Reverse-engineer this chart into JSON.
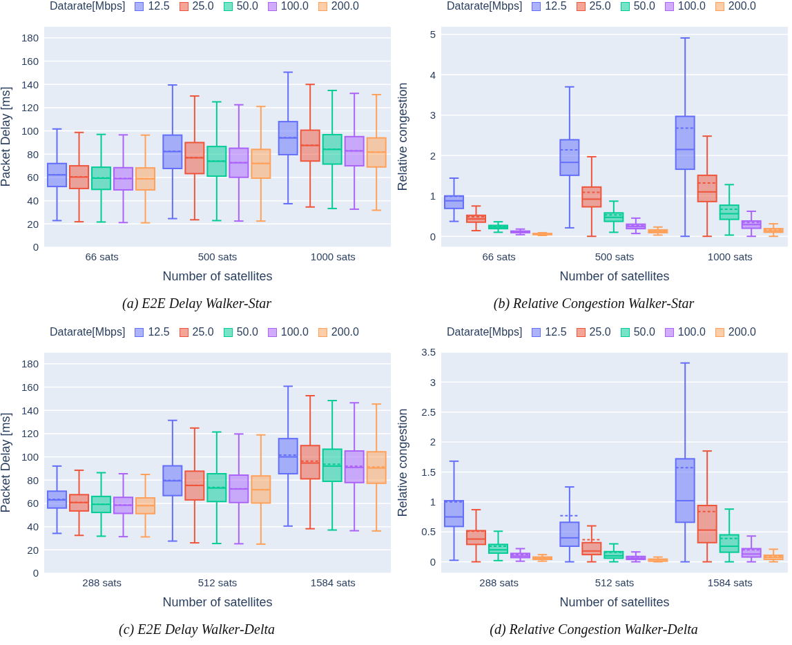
{
  "chart_data": [
    {
      "type": "box",
      "title": "(a) E2E Delay Walker-Star",
      "xlabel": "Number of satellites",
      "ylabel": "Packet Delay [ms]",
      "legend_title": "Datarate[Mbps]",
      "legend": "top",
      "grid": "y",
      "categories": [
        "66 sats",
        "500 sats",
        "1000 sats"
      ],
      "ylim": [
        0,
        190
      ],
      "yticks": [
        0,
        20,
        40,
        60,
        80,
        100,
        120,
        140,
        160,
        180
      ],
      "series": [
        {
          "name": "12.5",
          "color": "#636efa",
          "boxes": [
            {
              "low": 22.9,
              "q1": 52.2,
              "median": 62.2,
              "q3": 72,
              "high": 101.7,
              "mean": 62.4
            },
            {
              "low": 24.6,
              "q1": 67.7,
              "median": 82.2,
              "q3": 96.4,
              "high": 139.5,
              "mean": 82.5
            },
            {
              "low": 37.4,
              "q1": 79.6,
              "median": 94,
              "q3": 108,
              "high": 150.5,
              "mean": 94.3
            }
          ]
        },
        {
          "name": "25.0",
          "color": "#ef553b",
          "boxes": [
            {
              "low": 21.9,
              "q1": 50.5,
              "median": 60.3,
              "q3": 70,
              "high": 98.7,
              "mean": 60.5
            },
            {
              "low": 23.6,
              "q1": 63.3,
              "median": 76.9,
              "q3": 90,
              "high": 130,
              "mean": 77.1
            },
            {
              "low": 34.6,
              "q1": 74.1,
              "median": 87.5,
              "q3": 100.6,
              "high": 140,
              "mean": 87.7
            }
          ]
        },
        {
          "name": "50.0",
          "color": "#00cc96",
          "boxes": [
            {
              "low": 21.7,
              "q1": 49.7,
              "median": 59.4,
              "q3": 68.8,
              "high": 97,
              "mean": 59.6
            },
            {
              "low": 22.9,
              "q1": 61.1,
              "median": 73.9,
              "q3": 86.6,
              "high": 125,
              "mean": 74.1
            },
            {
              "low": 33.3,
              "q1": 71.5,
              "median": 84.1,
              "q3": 96.8,
              "high": 134.8,
              "mean": 84.3
            }
          ]
        },
        {
          "name": "100.0",
          "color": "#ab63fa",
          "boxes": [
            {
              "low": 21.2,
              "q1": 49.3,
              "median": 59,
              "q3": 68.4,
              "high": 96.6,
              "mean": 59.2
            },
            {
              "low": 22.5,
              "q1": 60.1,
              "median": 72.6,
              "q3": 85.1,
              "high": 122.5,
              "mean": 72.8
            },
            {
              "low": 32.7,
              "q1": 70,
              "median": 82.8,
              "q3": 95.1,
              "high": 132.3,
              "mean": 83
            }
          ]
        },
        {
          "name": "200.0",
          "color": "#ffa15a",
          "boxes": [
            {
              "low": 21,
              "q1": 49.3,
              "median": 58.8,
              "q3": 68.2,
              "high": 96.4,
              "mean": 59
            },
            {
              "low": 22.5,
              "q1": 59.4,
              "median": 72,
              "q3": 84.1,
              "high": 121,
              "mean": 72.2
            },
            {
              "low": 31.8,
              "q1": 69,
              "median": 81.7,
              "q3": 94,
              "high": 131.2,
              "mean": 81.9
            }
          ]
        }
      ]
    },
    {
      "type": "box",
      "title": "(b) Relative Congestion Walker-Star",
      "xlabel": "Number of satellites",
      "ylabel": "Relative congestion",
      "legend_title": "Datarate[Mbps]",
      "legend": "top",
      "grid": "y",
      "categories": [
        "66 sats",
        "500 sats",
        "1000 sats"
      ],
      "ylim": [
        -0.27,
        5.2
      ],
      "yticks": [
        0,
        1,
        2,
        3,
        4,
        5
      ],
      "series": [
        {
          "name": "12.5",
          "color": "#636efa",
          "boxes": [
            {
              "low": 0.37,
              "q1": 0.69,
              "median": 0.88,
              "q3": 1.0,
              "high": 1.44,
              "mean": 0.99
            },
            {
              "low": 0.21,
              "q1": 1.51,
              "median": 1.83,
              "q3": 2.39,
              "high": 3.7,
              "mean": 2.14
            },
            {
              "low": 0,
              "q1": 1.66,
              "median": 2.15,
              "q3": 2.97,
              "high": 4.91,
              "mean": 2.68
            }
          ]
        },
        {
          "name": "25.0",
          "color": "#ef553b",
          "boxes": [
            {
              "low": 0.14,
              "q1": 0.35,
              "median": 0.43,
              "q3": 0.52,
              "high": 0.75,
              "mean": 0.48
            },
            {
              "low": 0,
              "q1": 0.73,
              "median": 0.92,
              "q3": 1.22,
              "high": 1.97,
              "mean": 1.09
            },
            {
              "low": 0,
              "q1": 0.86,
              "median": 1.1,
              "q3": 1.51,
              "high": 2.48,
              "mean": 1.32
            }
          ]
        },
        {
          "name": "50.0",
          "color": "#00cc96",
          "boxes": [
            {
              "low": 0.1,
              "q1": 0.19,
              "median": 0.23,
              "q3": 0.27,
              "high": 0.36,
              "mean": 0.24
            },
            {
              "low": 0.1,
              "q1": 0.37,
              "median": 0.47,
              "q3": 0.58,
              "high": 0.87,
              "mean": 0.53
            },
            {
              "low": 0.03,
              "q1": 0.42,
              "median": 0.56,
              "q3": 0.77,
              "high": 1.28,
              "mean": 0.67
            }
          ]
        },
        {
          "name": "100.0",
          "color": "#ab63fa",
          "boxes": [
            {
              "low": 0.04,
              "q1": 0.09,
              "median": 0.11,
              "q3": 0.13,
              "high": 0.18,
              "mean": 0.12
            },
            {
              "low": 0.07,
              "q1": 0.19,
              "median": 0.24,
              "q3": 0.3,
              "high": 0.45,
              "mean": 0.27
            },
            {
              "low": 0,
              "q1": 0.2,
              "median": 0.29,
              "q3": 0.38,
              "high": 0.62,
              "mean": 0.34
            }
          ]
        },
        {
          "name": "200.0",
          "color": "#ffa15a",
          "boxes": [
            {
              "low": 0.02,
              "q1": 0.04,
              "median": 0.055,
              "q3": 0.07,
              "high": 0.09,
              "mean": 0.065
            },
            {
              "low": 0.03,
              "q1": 0.09,
              "median": 0.12,
              "q3": 0.16,
              "high": 0.23,
              "mean": 0.14
            },
            {
              "low": 0,
              "q1": 0.1,
              "median": 0.13,
              "q3": 0.19,
              "high": 0.31,
              "mean": 0.16
            }
          ]
        }
      ]
    },
    {
      "type": "box",
      "title": "(c) E2E Delay Walker-Delta",
      "xlabel": "Number of satellites",
      "ylabel": "Packet Delay [ms]",
      "legend_title": "Datarate[Mbps]",
      "legend": "top",
      "grid": "y",
      "categories": [
        "288 sats",
        "512 sats",
        "1584 sats"
      ],
      "ylim": [
        0,
        190
      ],
      "yticks": [
        0,
        20,
        40,
        60,
        80,
        100,
        120,
        140,
        160,
        180
      ],
      "series": [
        {
          "name": "12.5",
          "color": "#636efa",
          "boxes": [
            {
              "low": 34.2,
              "q1": 56,
              "median": 63,
              "q3": 70.5,
              "high": 92.1,
              "mean": 63.5
            },
            {
              "low": 27.6,
              "q1": 66.7,
              "median": 79.4,
              "q3": 92.3,
              "high": 131.4,
              "mean": 79.8
            },
            {
              "low": 40.5,
              "q1": 85.5,
              "median": 100,
              "q3": 115.7,
              "high": 160.7,
              "mean": 101.5
            }
          ]
        },
        {
          "name": "25.0",
          "color": "#ef553b",
          "boxes": [
            {
              "low": 32.5,
              "q1": 53.5,
              "median": 60.7,
              "q3": 67.5,
              "high": 88.5,
              "mean": 60.9
            },
            {
              "low": 26.1,
              "q1": 63,
              "median": 75.4,
              "q3": 87.7,
              "high": 124.8,
              "mean": 75.6
            },
            {
              "low": 38.2,
              "q1": 81.1,
              "median": 94.7,
              "q3": 109.7,
              "high": 152.6,
              "mean": 96.4
            }
          ]
        },
        {
          "name": "50.0",
          "color": "#00cc96",
          "boxes": [
            {
              "low": 31.8,
              "q1": 52.2,
              "median": 59.2,
              "q3": 66,
              "high": 86.4,
              "mean": 59.4
            },
            {
              "low": 25.5,
              "q1": 61.6,
              "median": 73.2,
              "q3": 85.5,
              "high": 121.4,
              "mean": 73.7
            },
            {
              "low": 37.1,
              "q1": 79,
              "median": 92.1,
              "q3": 106.6,
              "high": 148.4,
              "mean": 93.6
            }
          ]
        },
        {
          "name": "100.0",
          "color": "#ab63fa",
          "boxes": [
            {
              "low": 31.4,
              "q1": 51.4,
              "median": 58.4,
              "q3": 65.2,
              "high": 85.5,
              "mean": 58.6
            },
            {
              "low": 25.3,
              "q1": 60.7,
              "median": 72.4,
              "q3": 84.3,
              "high": 119.7,
              "mean": 72.6
            },
            {
              "low": 36.5,
              "q1": 77.9,
              "median": 90.9,
              "q3": 105.1,
              "high": 146.5,
              "mean": 92.1
            }
          ]
        },
        {
          "name": "200.0",
          "color": "#ffa15a",
          "boxes": [
            {
              "low": 31.2,
              "q1": 51.2,
              "median": 58,
              "q3": 64.7,
              "high": 84.9,
              "mean": 58.2
            },
            {
              "low": 25,
              "q1": 60.3,
              "median": 71.7,
              "q3": 83.6,
              "high": 118.9,
              "mean": 71.9
            },
            {
              "low": 36.3,
              "q1": 77.3,
              "median": 90.4,
              "q3": 104.4,
              "high": 145.4,
              "mean": 91.5
            }
          ]
        }
      ]
    },
    {
      "type": "box",
      "title": "(d) Relative Congestion Walker-Delta",
      "xlabel": "Number of satellites",
      "ylabel": "Relative congestion",
      "legend_title": "Datarate[Mbps]",
      "legend": "top",
      "grid": "y",
      "categories": [
        "288 sats",
        "512 sats",
        "1584 sats"
      ],
      "ylim": [
        -0.19,
        3.5
      ],
      "yticks": [
        0,
        0.5,
        1,
        1.5,
        2,
        2.5,
        3,
        3.5
      ],
      "series": [
        {
          "name": "12.5",
          "color": "#636efa",
          "boxes": [
            {
              "low": 0.025,
              "q1": 0.59,
              "median": 0.75,
              "q3": 1.02,
              "high": 1.68,
              "mean": 1.0
            },
            {
              "low": 0,
              "q1": 0.26,
              "median": 0.4,
              "q3": 0.66,
              "high": 1.25,
              "mean": 0.77
            },
            {
              "low": 0,
              "q1": 0.66,
              "median": 1.02,
              "q3": 1.72,
              "high": 3.32,
              "mean": 1.57
            }
          ]
        },
        {
          "name": "25.0",
          "color": "#ef553b",
          "boxes": [
            {
              "low": 0,
              "q1": 0.29,
              "median": 0.38,
              "q3": 0.52,
              "high": 0.87,
              "mean": 0.51
            },
            {
              "low": 0,
              "q1": 0.12,
              "median": 0.18,
              "q3": 0.32,
              "high": 0.6,
              "mean": 0.37
            },
            {
              "low": 0,
              "q1": 0.32,
              "median": 0.53,
              "q3": 0.94,
              "high": 1.85,
              "mean": 0.84
            }
          ]
        },
        {
          "name": "50.0",
          "color": "#00cc96",
          "boxes": [
            {
              "low": 0.02,
              "q1": 0.145,
              "median": 0.2,
              "q3": 0.29,
              "high": 0.51,
              "mean": 0.26
            },
            {
              "low": 0,
              "q1": 0.06,
              "median": 0.1,
              "q3": 0.17,
              "high": 0.3,
              "mean": 0.16
            },
            {
              "low": 0,
              "q1": 0.16,
              "median": 0.26,
              "q3": 0.45,
              "high": 0.88,
              "mean": 0.39
            }
          ]
        },
        {
          "name": "100.0",
          "color": "#ab63fa",
          "boxes": [
            {
              "low": 0.01,
              "q1": 0.07,
              "median": 0.095,
              "q3": 0.14,
              "high": 0.22,
              "mean": 0.12
            },
            {
              "low": 0,
              "q1": 0.04,
              "median": 0.06,
              "q3": 0.09,
              "high": 0.165,
              "mean": 0.08
            },
            {
              "low": 0,
              "q1": 0.08,
              "median": 0.13,
              "q3": 0.22,
              "high": 0.43,
              "mean": 0.2
            }
          ]
        },
        {
          "name": "200.0",
          "color": "#ffa15a",
          "boxes": [
            {
              "low": 0.01,
              "q1": 0.04,
              "median": 0.06,
              "q3": 0.08,
              "high": 0.12,
              "mean": 0.065
            },
            {
              "low": 0,
              "q1": 0.01,
              "median": 0.035,
              "q3": 0.045,
              "high": 0.08,
              "mean": 0.04
            },
            {
              "low": 0,
              "q1": 0.04,
              "median": 0.075,
              "q3": 0.11,
              "high": 0.21,
              "mean": 0.095
            }
          ]
        }
      ]
    }
  ]
}
